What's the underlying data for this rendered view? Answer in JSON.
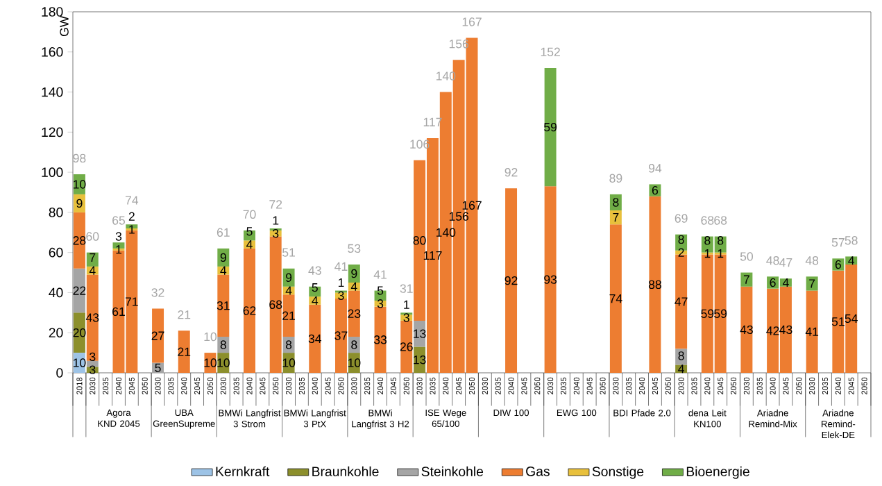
{
  "chart_data": {
    "type": "bar",
    "stacked": true,
    "ylabel": "GW",
    "ylim": [
      0,
      180
    ],
    "yticks": [
      0,
      20,
      40,
      60,
      80,
      100,
      120,
      140,
      160,
      180
    ],
    "legend": "bottom",
    "data_labels": true,
    "categories": [
      "2018",
      "2030",
      "2035",
      "2040",
      "2045",
      "2050",
      "2030",
      "2035",
      "2040",
      "2045",
      "2050",
      "2030",
      "2035",
      "2040",
      "2045",
      "2050",
      "2030",
      "2035",
      "2040",
      "2045",
      "2050",
      "2030",
      "2035",
      "2040",
      "2045",
      "2050",
      "2030",
      "2035",
      "2040",
      "2045",
      "2050",
      "2030",
      "2035",
      "2040",
      "2045",
      "2050",
      "2030",
      "2035",
      "2040",
      "2045",
      "2050",
      "2030",
      "2035",
      "2040",
      "2045",
      "2050",
      "2030",
      "2035",
      "2040",
      "2045",
      "2050",
      "2030",
      "2035",
      "2040",
      "2045",
      "2050",
      "2030",
      "2035",
      "2040",
      "2045",
      "2050"
    ],
    "series": [
      {
        "name": "Kernkraft",
        "color": "#9dc3e6",
        "values": [
          10,
          null,
          null,
          null,
          null,
          null,
          null,
          null,
          null,
          null,
          null,
          null,
          null,
          null,
          null,
          null,
          null,
          null,
          null,
          null,
          null,
          null,
          null,
          null,
          null,
          null,
          null,
          null,
          null,
          null,
          null,
          null,
          null,
          null,
          null,
          null,
          null,
          null,
          null,
          null,
          null,
          null,
          null,
          null,
          null,
          null,
          null,
          null,
          null,
          null,
          null,
          null,
          null,
          null,
          null,
          null,
          null,
          null,
          null,
          null,
          null
        ]
      },
      {
        "name": "Braunkohle",
        "color": "#8c8f2c",
        "values": [
          20,
          3,
          null,
          null,
          null,
          null,
          null,
          null,
          null,
          null,
          null,
          10,
          null,
          null,
          null,
          null,
          10,
          null,
          null,
          null,
          null,
          10,
          null,
          null,
          null,
          null,
          13,
          null,
          null,
          null,
          null,
          null,
          null,
          null,
          null,
          null,
          null,
          null,
          null,
          null,
          null,
          null,
          null,
          null,
          null,
          null,
          4,
          null,
          null,
          null,
          null,
          null,
          null,
          null,
          null,
          null,
          null,
          null,
          null,
          null,
          null
        ]
      },
      {
        "name": "Steinkohle",
        "color": "#a5a5a5",
        "values": [
          22,
          3,
          null,
          null,
          null,
          null,
          5,
          null,
          null,
          null,
          null,
          8,
          null,
          null,
          null,
          null,
          8,
          null,
          null,
          null,
          null,
          8,
          null,
          null,
          null,
          null,
          13,
          null,
          null,
          null,
          null,
          null,
          null,
          null,
          null,
          null,
          null,
          null,
          null,
          null,
          null,
          null,
          null,
          null,
          null,
          null,
          8,
          null,
          null,
          null,
          null,
          null,
          null,
          null,
          null,
          null,
          null,
          null,
          null,
          null,
          null
        ]
      },
      {
        "name": "Gas",
        "color": "#ed7d31",
        "values": [
          28,
          43,
          null,
          61,
          71,
          null,
          27,
          null,
          21,
          null,
          10,
          31,
          null,
          62,
          null,
          68,
          21,
          null,
          34,
          null,
          37,
          23,
          null,
          33,
          null,
          26,
          80,
          117,
          140,
          156,
          167,
          null,
          null,
          92,
          null,
          null,
          93,
          null,
          null,
          null,
          null,
          74,
          null,
          null,
          88,
          null,
          47,
          null,
          59,
          59,
          null,
          43,
          null,
          42,
          43,
          null,
          41,
          null,
          51,
          54,
          null
        ]
      },
      {
        "name": "Sonstige",
        "color": "#e8c03c",
        "values": [
          9,
          4,
          null,
          1,
          1,
          null,
          null,
          null,
          null,
          null,
          null,
          4,
          null,
          4,
          null,
          3,
          4,
          null,
          4,
          null,
          3,
          4,
          null,
          3,
          null,
          3,
          null,
          null,
          null,
          null,
          null,
          null,
          null,
          null,
          null,
          null,
          null,
          null,
          null,
          null,
          null,
          7,
          null,
          null,
          null,
          null,
          2,
          null,
          1,
          1,
          null,
          null,
          null,
          null,
          null,
          null,
          null,
          null,
          null,
          null,
          null
        ]
      },
      {
        "name": "Bioenergie",
        "color": "#70ad47",
        "values": [
          10,
          7,
          null,
          3,
          2,
          null,
          null,
          null,
          null,
          null,
          null,
          9,
          null,
          5,
          null,
          1,
          9,
          null,
          5,
          null,
          1,
          9,
          null,
          5,
          null,
          1,
          null,
          null,
          null,
          null,
          null,
          null,
          null,
          null,
          null,
          null,
          59,
          null,
          null,
          null,
          null,
          8,
          null,
          null,
          6,
          null,
          8,
          null,
          8,
          8,
          null,
          7,
          null,
          6,
          4,
          null,
          7,
          null,
          6,
          4,
          null
        ]
      }
    ],
    "totals": [
      "98",
      "60",
      null,
      "65",
      "74",
      null,
      "32",
      null,
      "21",
      null,
      "10",
      "61",
      null,
      "70",
      null,
      "72",
      "51",
      null,
      "43",
      null,
      "41",
      "53",
      null,
      "41",
      null,
      "31",
      "106",
      "117",
      "140",
      "156",
      "167",
      null,
      null,
      "92",
      null,
      null,
      "152",
      null,
      null,
      null,
      null,
      "89",
      null,
      null,
      "94",
      null,
      "69",
      null,
      "68",
      "68",
      null,
      "50",
      null,
      "48",
      "47",
      null,
      "48",
      null,
      "57",
      "58",
      null
    ],
    "annotations": [
      "Agora KND 2045",
      "UBA GreenSupreme",
      "BMWi Langfrist 3 Strom",
      "BMWi Langfrist 3 PtX",
      "BMWi Langfrist 3 H2",
      "ISE Wege 65/100",
      "DIW 100",
      "EWG 100",
      "BDI Pfade 2.0",
      "dena Leit KN100",
      "Ariadne Remind-Mix",
      "Ariadne Remind-Elek-DE"
    ]
  }
}
